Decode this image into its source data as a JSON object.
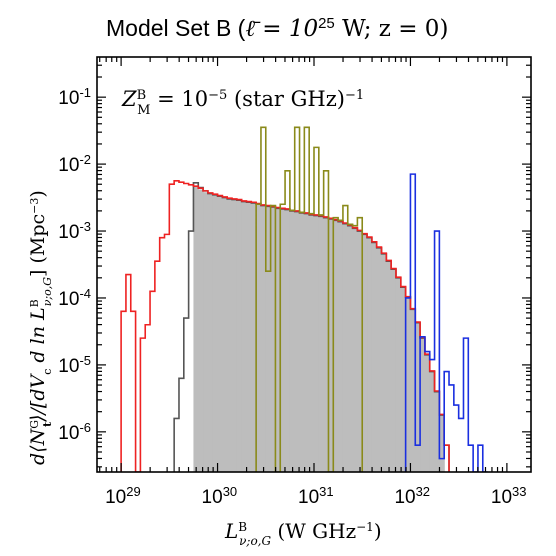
{
  "chart_data": {
    "type": "bar",
    "title": {
      "prefix": "Model Set B (",
      "math": "ℓ̄ = 10",
      "exp": "25",
      "suffix": " W; z = 0)"
    },
    "annotation": {
      "lhs": "Z",
      "lhs_sup": "B",
      "lhs_sub": "M",
      "rhs": " = 10",
      "rhs_exp": "−5",
      "rhs_tail": " (star GHz)",
      "rhs_tail_exp": "−1"
    },
    "xlabel": {
      "base": "L",
      "sup": "B",
      "sub": "ν;o,G",
      "units": " (W GHz",
      "units_exp": "−1",
      "close": ")"
    },
    "ylabel": {
      "text": "d⟨N",
      "sup": "G",
      "sub": "t",
      "rest": "⟩/[dV",
      "rest_sub": "c",
      "rest2": " d ln L",
      "rest2_sup": "B",
      "rest2_sub": "ν;o,G",
      "rest3": "] (Mpc",
      "rest3_exp": "−3",
      "rest3_close": ")"
    },
    "x_log_range": [
      28.75,
      33.25
    ],
    "y_log_range": [
      -6.6,
      -0.4
    ],
    "x_ticks": [
      {
        "base": "10",
        "exp": "29",
        "value": 29
      },
      {
        "base": "10",
        "exp": "30",
        "value": 30
      },
      {
        "base": "10",
        "exp": "31",
        "value": 31
      },
      {
        "base": "10",
        "exp": "32",
        "value": 32
      },
      {
        "base": "10",
        "exp": "33",
        "value": 33
      }
    ],
    "y_ticks": [
      {
        "base": "10",
        "exp": "-1",
        "value": -1
      },
      {
        "base": "10",
        "exp": "-2",
        "value": -2
      },
      {
        "base": "10",
        "exp": "-3",
        "value": -3
      },
      {
        "base": "10",
        "exp": "-4",
        "value": -4
      },
      {
        "base": "10",
        "exp": "-5",
        "value": -5
      },
      {
        "base": "10",
        "exp": "-6",
        "value": -6
      }
    ],
    "bin_width_log": 0.05,
    "series": [
      {
        "color": "#bdbdbd",
        "kind": "filled",
        "bins": [
          [
            29.7,
            -6.6
          ],
          [
            29.75,
            -2.32
          ],
          [
            29.8,
            -2.38
          ],
          [
            29.85,
            -2.42
          ],
          [
            29.9,
            -2.44
          ],
          [
            29.95,
            -2.46
          ],
          [
            30.0,
            -2.48
          ],
          [
            30.05,
            -2.5
          ],
          [
            30.1,
            -2.52
          ],
          [
            30.15,
            -2.53
          ],
          [
            30.2,
            -2.54
          ],
          [
            30.25,
            -2.56
          ],
          [
            30.3,
            -2.57
          ],
          [
            30.35,
            -2.58
          ],
          [
            30.4,
            -2.6
          ],
          [
            30.45,
            -2.62
          ],
          [
            30.5,
            -2.63
          ],
          [
            30.55,
            -2.64
          ],
          [
            30.6,
            -2.66
          ],
          [
            30.65,
            -2.67
          ],
          [
            30.7,
            -2.68
          ],
          [
            30.75,
            -2.7
          ],
          [
            30.8,
            -2.71
          ],
          [
            30.85,
            -2.73
          ],
          [
            30.9,
            -2.74
          ],
          [
            30.95,
            -2.76
          ],
          [
            31.0,
            -2.77
          ],
          [
            31.05,
            -2.78
          ],
          [
            31.1,
            -2.8
          ],
          [
            31.15,
            -2.82
          ],
          [
            31.2,
            -2.84
          ],
          [
            31.25,
            -2.86
          ],
          [
            31.3,
            -2.89
          ],
          [
            31.35,
            -2.92
          ],
          [
            31.4,
            -2.96
          ],
          [
            31.45,
            -3.0
          ],
          [
            31.5,
            -3.05
          ],
          [
            31.55,
            -3.1
          ],
          [
            31.6,
            -3.17
          ],
          [
            31.65,
            -3.25
          ],
          [
            31.7,
            -3.34
          ],
          [
            31.75,
            -3.45
          ],
          [
            31.8,
            -3.57
          ],
          [
            31.85,
            -3.7
          ],
          [
            31.9,
            -3.84
          ],
          [
            31.95,
            -3.99
          ],
          [
            32.0,
            -4.17
          ],
          [
            32.05,
            -4.37
          ],
          [
            32.1,
            -4.6
          ],
          [
            32.15,
            -4.85
          ],
          [
            32.2,
            -5.1
          ],
          [
            32.25,
            -5.4
          ],
          [
            32.3,
            -5.75
          ],
          [
            32.35,
            -6.6
          ]
        ]
      },
      {
        "color": "#555555",
        "kind": "step",
        "bins": [
          [
            29.55,
            -5.8
          ],
          [
            29.6,
            -5.2
          ],
          [
            29.65,
            -4.3
          ],
          [
            29.7,
            -3.0
          ],
          [
            29.75,
            -2.28
          ],
          [
            29.8,
            -2.35
          ],
          [
            29.85,
            -2.4
          ],
          [
            29.9,
            -2.44
          ],
          [
            29.95,
            -2.46
          ],
          [
            30.0,
            -2.48
          ],
          [
            30.05,
            -2.5
          ],
          [
            30.1,
            -2.52
          ],
          [
            30.15,
            -2.53
          ],
          [
            30.2,
            -2.54
          ],
          [
            30.25,
            -2.56
          ],
          [
            30.3,
            -2.57
          ],
          [
            30.35,
            -2.58
          ],
          [
            30.4,
            -2.6
          ],
          [
            30.45,
            -2.62
          ],
          [
            30.5,
            -2.63
          ],
          [
            30.55,
            -2.64
          ],
          [
            30.6,
            -2.66
          ],
          [
            30.65,
            -2.67
          ],
          [
            30.7,
            -2.68
          ],
          [
            30.75,
            -2.7
          ],
          [
            30.8,
            -2.71
          ],
          [
            30.85,
            -2.73
          ],
          [
            30.9,
            -2.74
          ],
          [
            30.95,
            -2.76
          ],
          [
            31.0,
            -2.77
          ],
          [
            31.05,
            -2.78
          ],
          [
            31.1,
            -2.8
          ],
          [
            31.15,
            -2.82
          ],
          [
            31.2,
            -2.84
          ],
          [
            31.25,
            -2.86
          ],
          [
            31.3,
            -2.89
          ],
          [
            31.35,
            -2.92
          ],
          [
            31.4,
            -2.96
          ],
          [
            31.45,
            -3.0
          ],
          [
            31.5,
            -3.05
          ],
          [
            31.55,
            -3.1
          ],
          [
            31.6,
            -3.17
          ],
          [
            31.65,
            -3.25
          ],
          [
            31.7,
            -3.34
          ],
          [
            31.75,
            -3.45
          ],
          [
            31.8,
            -3.57
          ],
          [
            31.85,
            -3.7
          ],
          [
            31.9,
            -3.84
          ],
          [
            31.95,
            -3.99
          ],
          [
            32.0,
            -4.17
          ],
          [
            32.05,
            -4.37
          ],
          [
            32.1,
            -4.6
          ],
          [
            32.15,
            -4.85
          ],
          [
            32.2,
            -5.1
          ],
          [
            32.25,
            -5.4
          ],
          [
            32.3,
            -5.75
          ],
          [
            32.35,
            -6.2
          ]
        ]
      },
      {
        "color": "#ee2222",
        "kind": "step",
        "bins": [
          [
            29.0,
            -4.2
          ],
          [
            29.05,
            -3.65
          ],
          [
            29.1,
            -4.2
          ],
          [
            29.15,
            -6.6
          ],
          [
            29.2,
            -4.6
          ],
          [
            29.25,
            -4.4
          ],
          [
            29.3,
            -3.9
          ],
          [
            29.35,
            -3.45
          ],
          [
            29.4,
            -3.1
          ],
          [
            29.45,
            -3.05
          ],
          [
            29.5,
            -2.3
          ],
          [
            29.55,
            -2.25
          ],
          [
            29.6,
            -2.27
          ],
          [
            29.65,
            -2.29
          ],
          [
            29.7,
            -2.31
          ],
          [
            29.75,
            -2.33
          ],
          [
            29.8,
            -2.36
          ],
          [
            29.85,
            -2.4
          ],
          [
            29.9,
            -2.43
          ],
          [
            29.95,
            -2.45
          ],
          [
            30.0,
            -2.47
          ],
          [
            30.05,
            -2.49
          ],
          [
            30.1,
            -2.51
          ],
          [
            30.15,
            -2.52
          ],
          [
            30.2,
            -2.53
          ],
          [
            30.25,
            -2.55
          ],
          [
            30.3,
            -2.56
          ],
          [
            30.35,
            -2.57
          ],
          [
            30.4,
            -2.59
          ],
          [
            30.45,
            -2.61
          ],
          [
            30.5,
            -2.62
          ],
          [
            30.55,
            -2.63
          ],
          [
            30.6,
            -2.65
          ],
          [
            30.65,
            -2.66
          ],
          [
            30.7,
            -2.67
          ],
          [
            30.75,
            -2.69
          ],
          [
            30.8,
            -2.7
          ],
          [
            30.85,
            -2.72
          ],
          [
            30.9,
            -2.73
          ],
          [
            30.95,
            -2.75
          ],
          [
            31.0,
            -2.76
          ],
          [
            31.05,
            -2.77
          ],
          [
            31.1,
            -2.79
          ],
          [
            31.15,
            -2.81
          ],
          [
            31.2,
            -2.83
          ],
          [
            31.25,
            -2.85
          ],
          [
            31.3,
            -2.88
          ],
          [
            31.35,
            -2.91
          ],
          [
            31.4,
            -2.95
          ],
          [
            31.45,
            -2.99
          ],
          [
            31.5,
            -3.04
          ],
          [
            31.55,
            -3.09
          ],
          [
            31.6,
            -3.16
          ],
          [
            31.65,
            -3.24
          ],
          [
            31.7,
            -3.33
          ],
          [
            31.75,
            -3.44
          ],
          [
            31.8,
            -3.56
          ],
          [
            31.85,
            -3.69
          ],
          [
            31.9,
            -3.83
          ],
          [
            31.95,
            -3.98
          ],
          [
            32.0,
            -4.16
          ],
          [
            32.05,
            -4.36
          ],
          [
            32.1,
            -4.59
          ],
          [
            32.15,
            -4.84
          ],
          [
            32.2,
            -5.09
          ],
          [
            32.25,
            -5.39
          ],
          [
            32.3,
            -5.74
          ],
          [
            32.35,
            -6.2
          ]
        ]
      },
      {
        "color": "#8a8a1a",
        "kind": "step",
        "bins": [
          [
            30.4,
            -2.6
          ],
          [
            30.45,
            -1.45
          ],
          [
            30.5,
            -3.6
          ],
          [
            30.55,
            -2.62
          ],
          [
            30.6,
            -6.6
          ],
          [
            30.65,
            -2.6
          ],
          [
            30.7,
            -2.1
          ],
          [
            30.75,
            -2.69
          ],
          [
            30.8,
            -1.45
          ],
          [
            30.85,
            -2.72
          ],
          [
            30.9,
            -1.45
          ],
          [
            30.95,
            -2.74
          ],
          [
            31.0,
            -1.75
          ],
          [
            31.05,
            -2.76
          ],
          [
            31.1,
            -2.1
          ],
          [
            31.15,
            -6.6
          ],
          [
            31.2,
            -2.8
          ],
          [
            31.25,
            -2.84
          ],
          [
            31.3,
            -2.62
          ],
          [
            31.35,
            -2.9
          ],
          [
            31.4,
            -2.92
          ],
          [
            31.45,
            -2.8
          ]
        ]
      },
      {
        "color": "#1a2fe0",
        "kind": "step",
        "bins": [
          [
            31.95,
            -4.0
          ],
          [
            32.0,
            -2.15
          ],
          [
            32.05,
            -6.2
          ],
          [
            32.1,
            -4.58
          ],
          [
            32.15,
            -4.8
          ],
          [
            32.2,
            -4.92
          ],
          [
            32.25,
            -3.0
          ],
          [
            32.3,
            -6.4
          ],
          [
            32.35,
            -5.1
          ],
          [
            32.4,
            -5.3
          ],
          [
            32.45,
            -5.6
          ],
          [
            32.5,
            -5.8
          ],
          [
            32.55,
            -4.6
          ],
          [
            32.6,
            -6.2
          ],
          [
            32.65,
            -6.6
          ],
          [
            32.7,
            -6.2
          ],
          [
            32.75,
            -6.6
          ]
        ]
      }
    ]
  }
}
